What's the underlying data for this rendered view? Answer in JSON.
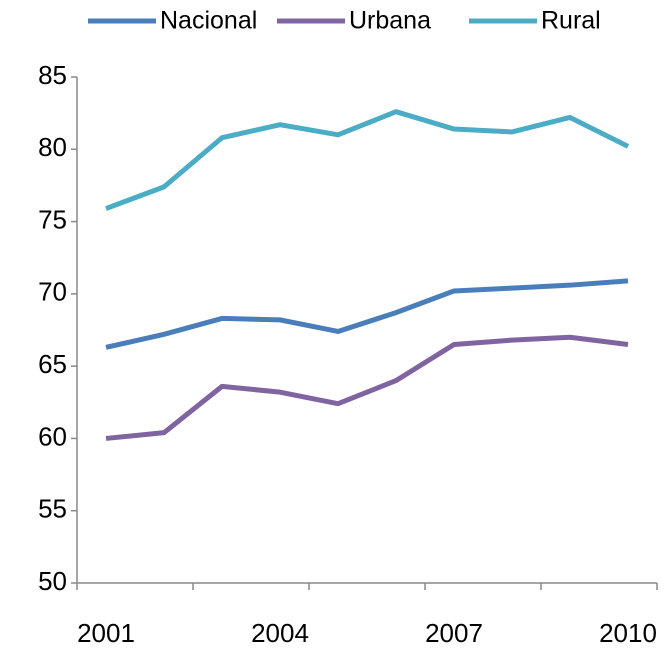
{
  "chart_data": {
    "type": "line",
    "categories": [
      "2001",
      null,
      null,
      "2004",
      null,
      null,
      "2007",
      null,
      null,
      "2010"
    ],
    "series": [
      {
        "name": "Nacional",
        "color": "#4a7ebb",
        "values": [
          66.3,
          67.2,
          68.3,
          68.2,
          67.4,
          68.7,
          70.2,
          70.4,
          70.6,
          70.9
        ]
      },
      {
        "name": "Urbana",
        "color": "#8064a2",
        "values": [
          60.0,
          60.4,
          63.6,
          63.2,
          62.4,
          64.0,
          66.5,
          66.8,
          67.0,
          66.5
        ]
      },
      {
        "name": "Rural",
        "color": "#4bacc6",
        "values": [
          75.9,
          77.4,
          80.8,
          81.7,
          81.0,
          82.6,
          81.4,
          81.2,
          82.2,
          80.2
        ]
      }
    ],
    "ylim": [
      50,
      85
    ],
    "yticks": [
      50,
      55,
      60,
      65,
      70,
      75,
      80,
      85
    ],
    "legend": "top",
    "grid": false
  }
}
